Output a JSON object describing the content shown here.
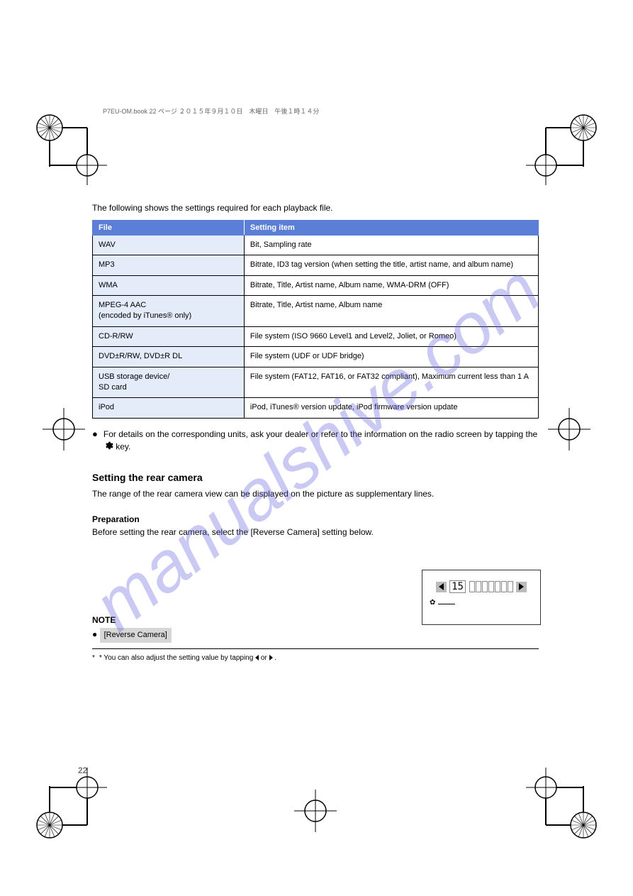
{
  "intro": "The following shows the settings required for each playback file.",
  "table": {
    "headers": [
      "File",
      "Setting item"
    ],
    "rows": [
      [
        "WAV",
        "Bit, Sampling rate"
      ],
      [
        "MP3",
        "Bitrate, ID3 tag version (when setting the title, artist name, and album name)"
      ],
      [
        "WMA",
        "Bitrate, Title, Artist name, Album name, WMA-DRM (OFF)"
      ],
      [
        "MPEG-4 AAC\n(encoded by iTunes® only)",
        "Bitrate, Title, Artist name, Album name"
      ],
      [
        "CD-R/RW",
        "File system (ISO 9660 Level1 and Level2, Joliet, or Romeo)"
      ],
      [
        "DVD±R/RW, DVD±R DL",
        "File system (UDF or UDF bridge)"
      ],
      [
        "USB storage device/\nSD card",
        "File system (FAT12, FAT16, or FAT32 compliant), Maximum current less than 1 A"
      ],
      [
        "iPod",
        "iPod, iTunes® version update, iPod firmware version update"
      ]
    ]
  },
  "note1_pre": "For details on the corresponding units, ask your dealer or refer to the information on the radio screen by tapping the ",
  "note1_post": " key.",
  "heading": "Setting the rear camera",
  "body_line1": "The range of the rear camera view can be displayed on the picture as supplementary lines.",
  "preparation_label": "Preparation",
  "body_line2_pre": "Before setting the rear camera, select the ",
  "body_line2_item": "[Reverse Camera]",
  "body_line2_post": " setting below.",
  "display": {
    "number": "15"
  },
  "note_label": "NOTE",
  "gray_cell": "[Reverse Camera]",
  "footnote_pre": "* You can also adjust the setting value by tapping ",
  "footnote_mid": " or ",
  "footnote_post": " .",
  "page_number": "22",
  "book_fold_top": "P7EU-OM.book  22 ページ  ２０１５年９月１０日　木曜日　午後１時１４分",
  "watermark": "manualshive.com",
  "colors": {
    "header_bg": "#5b7ed6",
    "cell_bg": "#e4ecfa",
    "watermark": "rgba(100,100,220,0.35)",
    "gray": "#d6d6d6"
  }
}
